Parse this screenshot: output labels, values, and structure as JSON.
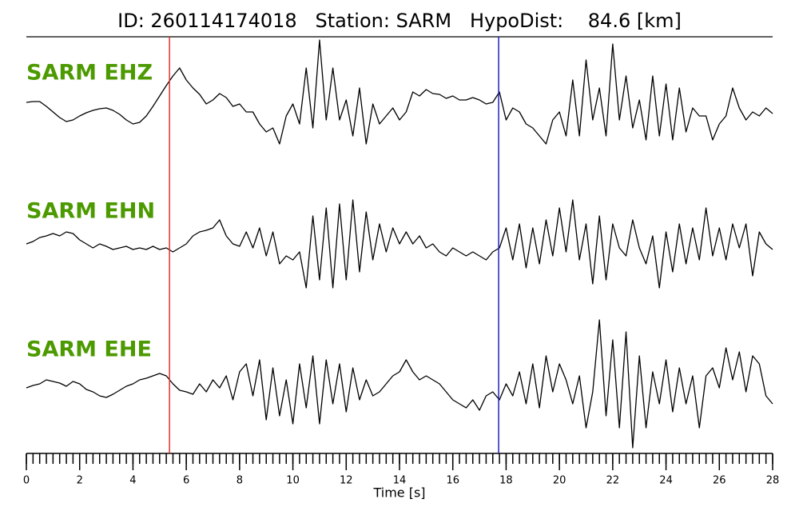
{
  "chart_data": {
    "type": "line",
    "title": "ID: 260114174018   Station: SARM   HypoDist:    84.6 [km]",
    "xlabel": "Time [s]",
    "xlim": [
      0,
      28
    ],
    "xticks": [
      0,
      2,
      4,
      6,
      8,
      10,
      12,
      14,
      16,
      18,
      20,
      22,
      24,
      26,
      28
    ],
    "x": [
      0,
      0.25,
      0.5,
      0.75,
      1,
      1.25,
      1.5,
      1.75,
      2,
      2.25,
      2.5,
      2.75,
      3,
      3.25,
      3.5,
      3.75,
      4,
      4.25,
      4.5,
      4.75,
      5,
      5.25,
      5.5,
      5.75,
      6,
      6.25,
      6.5,
      6.75,
      7,
      7.25,
      7.5,
      7.75,
      8,
      8.25,
      8.5,
      8.75,
      9,
      9.25,
      9.5,
      9.75,
      10,
      10.25,
      10.5,
      10.75,
      11,
      11.25,
      11.5,
      11.75,
      12,
      12.25,
      12.5,
      12.75,
      13,
      13.25,
      13.5,
      13.75,
      14,
      14.25,
      14.5,
      14.75,
      15,
      15.25,
      15.5,
      15.75,
      16,
      16.25,
      16.5,
      16.75,
      17,
      17.25,
      17.5,
      17.75,
      18,
      18.25,
      18.5,
      18.75,
      19,
      19.25,
      19.5,
      19.75,
      20,
      20.25,
      20.5,
      20.75,
      21,
      21.25,
      21.5,
      21.75,
      22,
      22.25,
      22.5,
      22.75,
      23,
      23.25,
      23.5,
      23.75,
      24,
      24.25,
      24.5,
      24.75,
      25,
      25.25,
      25.5,
      25.75,
      26,
      26.25,
      26.5,
      26.75,
      27,
      27.25,
      27.5,
      27.75,
      28
    ],
    "label_color": "#4c9a00",
    "vlines": [
      {
        "value": 5.37,
        "color": "#e03030"
      },
      {
        "value": 17.72,
        "color": "#2020c0"
      }
    ],
    "series": [
      {
        "name": "SARM EHZ",
        "color": "#000000",
        "ylim": [
          -90,
          90
        ],
        "values": [
          -3,
          -2,
          -2,
          -8,
          -15,
          -22,
          -27,
          -25,
          -20,
          -16,
          -13,
          -11,
          -10,
          -13,
          -18,
          -25,
          -30,
          -28,
          -20,
          -8,
          5,
          18,
          30,
          40,
          25,
          15,
          7,
          -5,
          0,
          8,
          3,
          -8,
          -5,
          -15,
          -15,
          -30,
          -40,
          -35,
          -55,
          -20,
          -5,
          -30,
          40,
          -35,
          75,
          -25,
          40,
          -25,
          0,
          -45,
          15,
          -55,
          -5,
          -30,
          -20,
          -10,
          -25,
          -15,
          10,
          5,
          13,
          8,
          7,
          2,
          5,
          0,
          0,
          3,
          0,
          -5,
          -3,
          10,
          -25,
          -10,
          -15,
          -30,
          -35,
          -45,
          -55,
          -25,
          -15,
          -45,
          25,
          -45,
          50,
          -25,
          15,
          -45,
          70,
          -25,
          30,
          -35,
          0,
          -50,
          30,
          -45,
          20,
          -50,
          15,
          -40,
          -10,
          -20,
          -20,
          -50,
          -30,
          -20,
          15,
          -10,
          -25,
          -15,
          -20,
          -10,
          -17
        ]
      },
      {
        "name": "SARM EHN",
        "color": "#000000",
        "ylim": [
          -90,
          90
        ],
        "values": [
          -5,
          -2,
          3,
          5,
          8,
          5,
          10,
          8,
          0,
          -5,
          -10,
          -5,
          -8,
          -12,
          -10,
          -8,
          -12,
          -10,
          -12,
          -8,
          -12,
          -10,
          -15,
          -10,
          -5,
          5,
          10,
          12,
          15,
          25,
          5,
          -5,
          -8,
          10,
          -10,
          15,
          -20,
          10,
          -30,
          -20,
          -25,
          -15,
          -60,
          30,
          -50,
          40,
          -60,
          45,
          -50,
          50,
          -40,
          35,
          -25,
          20,
          -15,
          15,
          -5,
          10,
          -5,
          5,
          -10,
          -5,
          -15,
          -20,
          -10,
          -15,
          -20,
          -15,
          -20,
          -25,
          -15,
          -10,
          15,
          -25,
          20,
          -35,
          15,
          -30,
          25,
          -20,
          40,
          -15,
          50,
          -25,
          20,
          -55,
          30,
          -50,
          20,
          -10,
          -20,
          25,
          -10,
          -30,
          5,
          -60,
          10,
          -40,
          20,
          -30,
          15,
          -25,
          40,
          -20,
          15,
          -25,
          20,
          -10,
          20,
          -45,
          10,
          -5,
          -12
        ]
      },
      {
        "name": "SARM EHE",
        "color": "#000000",
        "ylim": [
          -90,
          90
        ],
        "values": [
          0,
          3,
          5,
          10,
          8,
          6,
          2,
          8,
          5,
          -2,
          -5,
          -10,
          -12,
          -8,
          -3,
          2,
          5,
          10,
          12,
          15,
          18,
          15,
          5,
          -3,
          -5,
          -8,
          5,
          -5,
          10,
          0,
          15,
          -15,
          20,
          30,
          -10,
          35,
          -40,
          25,
          -35,
          10,
          -45,
          30,
          -25,
          40,
          -45,
          35,
          -20,
          30,
          -30,
          25,
          -15,
          10,
          -10,
          -5,
          5,
          15,
          20,
          35,
          20,
          10,
          15,
          10,
          5,
          -5,
          -15,
          -20,
          -25,
          -15,
          -28,
          -10,
          -5,
          -15,
          5,
          -10,
          20,
          -20,
          30,
          -25,
          40,
          -5,
          30,
          10,
          -20,
          15,
          -50,
          -5,
          85,
          -35,
          60,
          -50,
          70,
          -75,
          40,
          -50,
          20,
          -20,
          35,
          -30,
          25,
          -20,
          15,
          -50,
          15,
          25,
          0,
          50,
          10,
          45,
          -5,
          40,
          30,
          -10,
          -20
        ]
      }
    ]
  }
}
